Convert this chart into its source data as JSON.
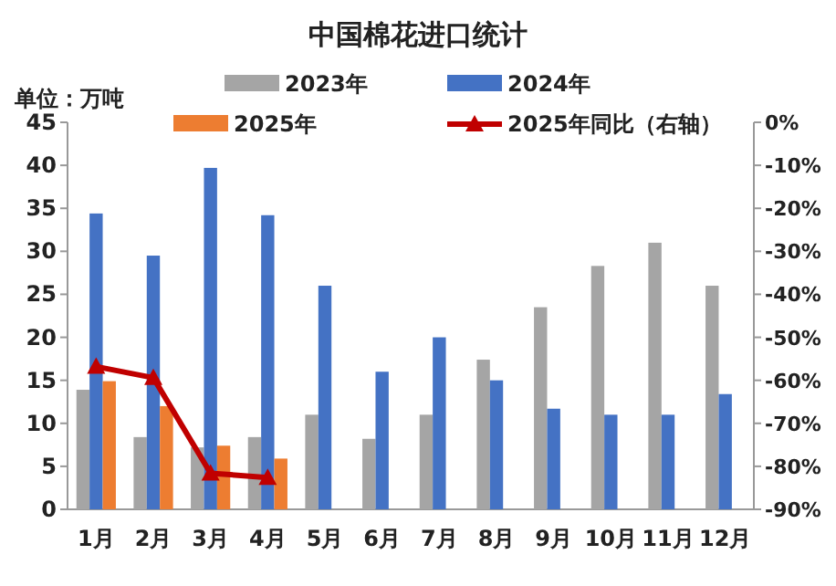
{
  "chart_data": {
    "type": "bar",
    "title": "中国棉花进口统计",
    "ylabel": "单位：万吨",
    "categories": [
      "1月",
      "2月",
      "3月",
      "4月",
      "5月",
      "6月",
      "7月",
      "8月",
      "9月",
      "10月",
      "11月",
      "12月"
    ],
    "series": [
      {
        "name": "2023年",
        "color": "#a5a5a5",
        "values": [
          13.9,
          8.4,
          7.2,
          8.4,
          11,
          8.2,
          11,
          17.4,
          23.5,
          28.3,
          31,
          26
        ]
      },
      {
        "name": "2024年",
        "color": "#4472c4",
        "values": [
          34.4,
          29.5,
          39.7,
          34.2,
          26,
          16,
          20,
          15,
          11.7,
          11,
          11,
          13.4
        ]
      },
      {
        "name": "2025年",
        "color": "#ed7d31",
        "values": [
          14.9,
          12,
          7.4,
          5.9,
          null,
          null,
          null,
          null,
          null,
          null,
          null,
          null
        ]
      },
      {
        "name": "2025年同比（右轴）",
        "type": "line",
        "axis": "y2",
        "color": "#c00000",
        "marker": "triangle",
        "values": [
          -56.8,
          -59.4,
          -81.6,
          -82.6,
          null,
          null,
          null,
          null,
          null,
          null,
          null,
          null
        ]
      }
    ],
    "ylim": [
      0,
      45
    ],
    "yticks": [
      0,
      5,
      10,
      15,
      20,
      25,
      30,
      35,
      40,
      45
    ],
    "y2lim": [
      -90,
      0
    ],
    "y2ticks": [
      {
        "value": 0,
        "label": "0%"
      },
      {
        "value": -10,
        "label": "-10%"
      },
      {
        "value": -20,
        "label": "-20%"
      },
      {
        "value": -30,
        "label": "-30%"
      },
      {
        "value": -40,
        "label": "-40%"
      },
      {
        "value": -50,
        "label": "-50%"
      },
      {
        "value": -60,
        "label": "-60%"
      },
      {
        "value": -70,
        "label": "-70%"
      },
      {
        "value": -80,
        "label": "-80%"
      },
      {
        "value": -90,
        "label": "-90%"
      }
    ],
    "legend": "top",
    "grid": false
  }
}
